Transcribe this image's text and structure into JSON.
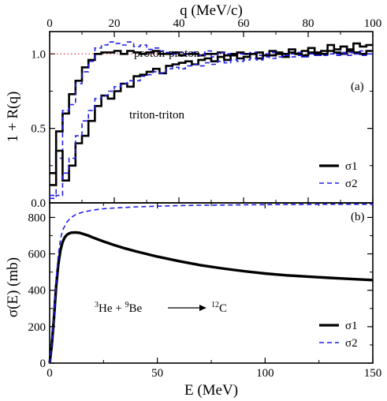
{
  "colors": {
    "sigma1": "#000000",
    "sigma2": "#1f1fe6",
    "reference": "#e0303a"
  },
  "chart_data": [
    {
      "type": "line",
      "panel_label": "(a)",
      "xlabel": "q (MeV/c)",
      "ylabel": "1 + R(q)",
      "xlim": [
        0,
        100
      ],
      "ylim": [
        0,
        1.15
      ],
      "x_ticks": [
        "0",
        "20",
        "40",
        "60",
        "80",
        "100"
      ],
      "y_ticks": [
        "0.0",
        "0.5",
        "1.0"
      ],
      "x_tick_values": [
        0,
        20,
        40,
        60,
        80,
        100
      ],
      "y_tick_values": [
        0,
        0.5,
        1.0
      ],
      "reference_line": {
        "y": 1.0,
        "style": "dotted"
      },
      "annotations": [
        "proton-proton",
        "triton-triton"
      ],
      "legend": {
        "position": "bottom-right",
        "entries": [
          "σ1",
          "σ2"
        ]
      },
      "series": [
        {
          "name": "σ1",
          "group": "proton-proton",
          "style": "solid",
          "step": true,
          "x": [
            0,
            2,
            4,
            6,
            8,
            10,
            12,
            14,
            16,
            18,
            20,
            22,
            24,
            26,
            28,
            30,
            32,
            34,
            36,
            38,
            40,
            42,
            44,
            46,
            48,
            50,
            52,
            54,
            56,
            58,
            60,
            62,
            64,
            66,
            68,
            70,
            72,
            74,
            76,
            78,
            80,
            82,
            84,
            86,
            88,
            90,
            92,
            94,
            96,
            98
          ],
          "y": [
            0.2,
            0.48,
            0.6,
            0.73,
            0.82,
            0.91,
            0.96,
            1.0,
            1.01,
            1.01,
            1.02,
            1.0,
            1.02,
            1.01,
            1.0,
            1.01,
            1.02,
            1.0,
            1.0,
            1.01,
            0.99,
            1.0,
            1.0,
            0.99,
            1.0,
            1.0,
            1.01,
            0.99,
            1.0,
            1.01,
            1.0,
            1.0,
            1.01,
            0.99,
            1.02,
            1.01,
            1.0,
            1.03,
            1.0,
            1.02,
            1.04,
            1.01,
            1.02,
            1.06,
            1.03,
            1.05,
            1.02,
            1.07,
            1.05,
            1.06
          ]
        },
        {
          "name": "σ2",
          "group": "proton-proton",
          "style": "dashed",
          "step": true,
          "x": [
            0,
            2,
            4,
            6,
            8,
            10,
            12,
            14,
            16,
            18,
            20,
            22,
            24,
            26,
            28,
            30,
            32,
            34,
            36,
            38,
            40,
            42,
            44,
            46,
            48,
            50,
            52,
            54,
            56,
            58,
            60,
            62,
            64,
            66,
            68,
            70,
            72,
            74,
            76,
            78,
            80,
            82,
            84,
            86,
            88,
            90,
            92,
            94,
            96,
            98
          ],
          "y": [
            0.05,
            0.3,
            0.62,
            0.66,
            0.8,
            0.88,
            0.95,
            1.04,
            1.06,
            1.08,
            1.07,
            1.06,
            1.08,
            1.05,
            1.06,
            1.03,
            1.04,
            1.02,
            1.01,
            1.0,
            1.01,
            1.0,
            1.01,
            0.99,
            1.02,
            0.98,
            1.01,
            1.0,
            0.99,
            1.0,
            1.0,
            1.01,
            0.99,
            1.0,
            1.01,
            1.0,
            0.99,
            1.0,
            1.01,
            0.98,
            1.0,
            0.99,
            1.0,
            1.02,
            1.0,
            1.01,
            0.99,
            1.0,
            1.02,
            1.0
          ]
        },
        {
          "name": "σ1",
          "group": "triton-triton",
          "style": "solid",
          "step": true,
          "x": [
            0,
            2,
            4,
            6,
            8,
            10,
            12,
            14,
            16,
            18,
            20,
            22,
            24,
            26,
            28,
            30,
            32,
            34,
            36,
            38,
            40,
            42,
            44,
            46,
            48,
            50,
            52,
            54,
            56,
            58,
            60,
            62,
            64,
            66,
            68,
            70,
            72,
            74,
            76,
            78,
            80,
            82,
            84,
            86,
            88,
            90,
            92,
            94,
            96,
            98
          ],
          "y": [
            0.12,
            0.35,
            0.15,
            0.25,
            0.4,
            0.45,
            0.55,
            0.65,
            0.72,
            0.7,
            0.75,
            0.8,
            0.78,
            0.85,
            0.86,
            0.88,
            0.9,
            0.87,
            0.92,
            0.93,
            0.94,
            0.95,
            0.93,
            0.96,
            0.97,
            0.95,
            0.98,
            0.96,
            0.99,
            0.97,
            0.98,
            1.0,
            0.97,
            0.99,
            0.99,
            1.0,
            0.98,
            1.01,
            1.0,
            0.99,
            1.01,
            1.0,
            1.0,
            1.02,
            1.01,
            1.0,
            1.03,
            1.01,
            1.0,
            1.02
          ]
        },
        {
          "name": "σ2",
          "group": "triton-triton",
          "style": "dashed",
          "step": true,
          "x": [
            0,
            2,
            4,
            6,
            8,
            10,
            12,
            14,
            16,
            18,
            20,
            22,
            24,
            26,
            28,
            30,
            32,
            34,
            36,
            38,
            40,
            42,
            44,
            46,
            48,
            50,
            52,
            54,
            56,
            58,
            60,
            62,
            64,
            66,
            68,
            70,
            72,
            74,
            76,
            78,
            80,
            82,
            84,
            86,
            88,
            90,
            92,
            94,
            96,
            98
          ],
          "y": [
            0.03,
            0.05,
            0.2,
            0.3,
            0.45,
            0.55,
            0.62,
            0.7,
            0.72,
            0.75,
            0.78,
            0.8,
            0.82,
            0.82,
            0.85,
            0.86,
            0.88,
            0.87,
            0.9,
            0.91,
            0.9,
            0.92,
            0.93,
            0.92,
            0.94,
            0.93,
            0.95,
            0.94,
            0.96,
            0.95,
            0.96,
            0.97,
            0.96,
            0.98,
            0.97,
            0.98,
            0.99,
            0.98,
            0.99,
            0.98,
            1.0,
            0.99,
            0.99,
            1.0,
            0.99,
            1.0,
            1.01,
            1.0,
            0.99,
            1.0
          ]
        }
      ]
    },
    {
      "type": "line",
      "panel_label": "(b)",
      "xlabel": "E (MeV)",
      "ylabel": "σ(E) (mb)",
      "xlim": [
        0,
        150
      ],
      "ylim": [
        0,
        880
      ],
      "x_ticks": [
        "0",
        "50",
        "100",
        "150"
      ],
      "y_ticks": [
        "0",
        "200",
        "400",
        "600",
        "800"
      ],
      "x_tick_values": [
        0,
        50,
        100,
        150
      ],
      "y_tick_values": [
        0,
        200,
        400,
        600,
        800
      ],
      "annotation": {
        "pre1": "3",
        "t1": "He + ",
        "pre2": "9",
        "t2": "Be",
        "pre3": "12",
        "t3": "C"
      },
      "legend": {
        "position": "bottom-right",
        "entries": [
          "σ1",
          "σ2"
        ]
      },
      "series": [
        {
          "name": "σ1",
          "style": "solid",
          "x": [
            0,
            1,
            2,
            3,
            4,
            5,
            6,
            7,
            8,
            9,
            10,
            12,
            14,
            16,
            18,
            20,
            25,
            30,
            35,
            40,
            50,
            60,
            70,
            80,
            90,
            100,
            110,
            120,
            130,
            140,
            150
          ],
          "y": [
            0,
            100,
            250,
            420,
            540,
            620,
            665,
            690,
            705,
            712,
            716,
            718,
            715,
            708,
            700,
            690,
            668,
            648,
            630,
            614,
            585,
            560,
            538,
            520,
            505,
            492,
            482,
            475,
            468,
            462,
            456
          ]
        },
        {
          "name": "σ2",
          "style": "dashed",
          "x": [
            0,
            1,
            2,
            3,
            4,
            5,
            6,
            8,
            10,
            12,
            15,
            20,
            25,
            30,
            40,
            50,
            60,
            70,
            80,
            90,
            100,
            110,
            120,
            130,
            140,
            150
          ],
          "y": [
            0,
            100,
            260,
            450,
            590,
            680,
            730,
            775,
            800,
            815,
            828,
            840,
            848,
            852,
            858,
            862,
            865,
            867,
            868,
            869,
            870,
            871,
            871,
            872,
            872,
            872
          ]
        }
      ]
    }
  ]
}
